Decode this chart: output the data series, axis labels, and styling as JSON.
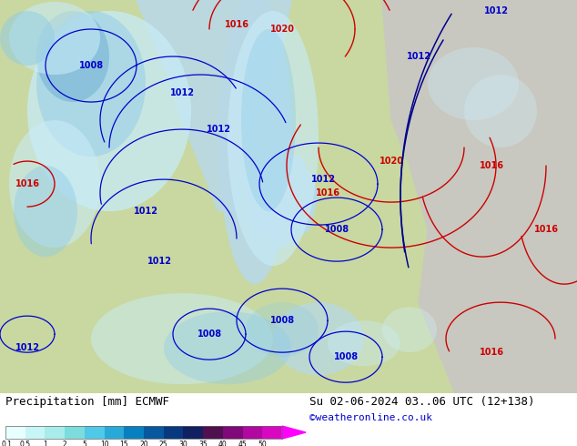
{
  "title_left": "Precipitation [mm] ECMWF",
  "title_right": "Su 02-06-2024 03..06 UTC (12+138)",
  "credit": "©weatheronline.co.uk",
  "colorbar_labels": [
    "0.1",
    "0.5",
    "1",
    "2",
    "5",
    "10",
    "15",
    "20",
    "25",
    "30",
    "35",
    "40",
    "45",
    "50"
  ],
  "cbar_colors": [
    "#e8ffff",
    "#c8f5f5",
    "#a8ecec",
    "#7ddcdc",
    "#50c8e8",
    "#28aad8",
    "#0880c0",
    "#0858a0",
    "#083880",
    "#102060",
    "#501050",
    "#800878",
    "#b008a0",
    "#d808c0",
    "#ff00ff"
  ],
  "land_color": "#c8d8a0",
  "land_color2": "#d8e8b0",
  "sea_color": "#b8d8e8",
  "precip_light": "#c8ecf8",
  "precip_mid": "#90cce8",
  "precip_dark": "#5098c8",
  "gray_land": "#c8c8c0",
  "text_color": "#000000",
  "credit_color": "#0000cc",
  "red_isobar": "#cc0000",
  "blue_isobar": "#0000cc",
  "label_fontsize": 8,
  "credit_fontsize": 8,
  "title_fontsize": 9,
  "isobar_fontsize": 7
}
